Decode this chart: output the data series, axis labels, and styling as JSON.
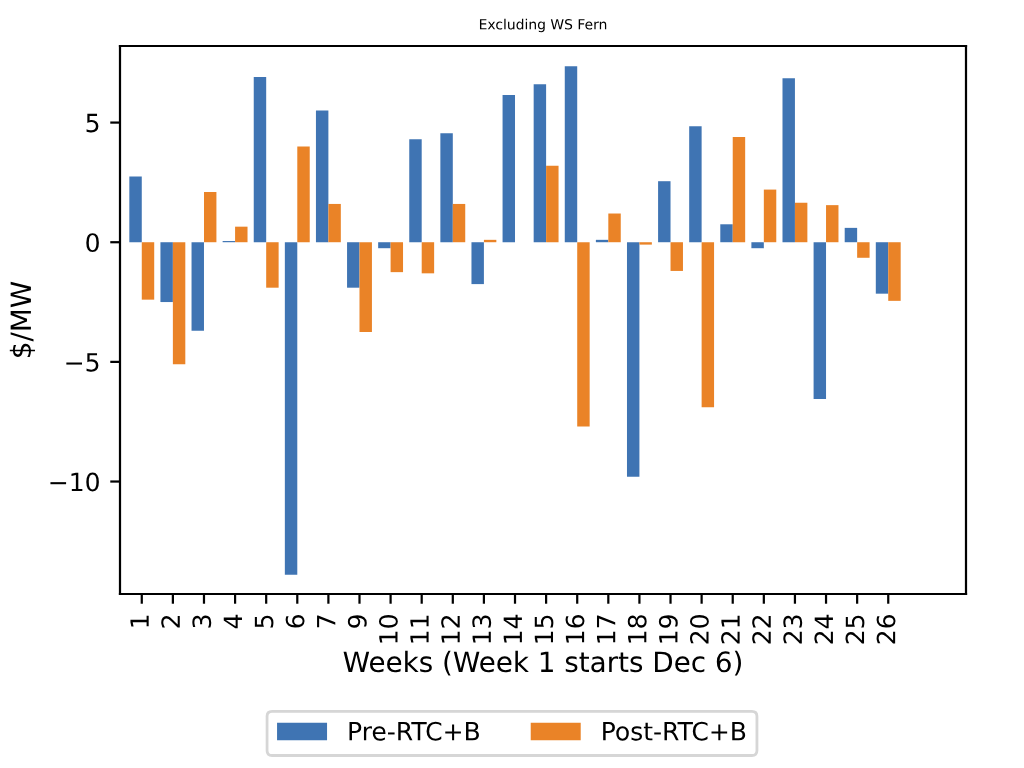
{
  "chart_data": {
    "type": "bar",
    "title": "Excluding WS Fern",
    "xlabel": "Weeks (Week 1 starts Dec 6)",
    "ylabel": "$/MW",
    "categories": [
      "1",
      "2",
      "3",
      "4",
      "5",
      "6",
      "7",
      "9",
      "10",
      "11",
      "12",
      "13",
      "14",
      "15",
      "16",
      "17",
      "18",
      "19",
      "20",
      "21",
      "22",
      "23",
      "24",
      "25",
      "26"
    ],
    "series": [
      {
        "name": "Pre-RTC+B",
        "color": "#3f74b3",
        "values": [
          2.75,
          -2.5,
          -3.7,
          0.05,
          6.9,
          -13.9,
          5.5,
          -1.9,
          -0.25,
          4.3,
          4.55,
          -1.75,
          6.15,
          6.6,
          7.35,
          0.1,
          -9.8,
          2.55,
          4.85,
          0.75,
          -0.25,
          6.85,
          -6.55,
          0.6,
          -2.15
        ]
      },
      {
        "name": "Post-RTC+B",
        "color": "#ea8327",
        "values": [
          -2.4,
          -5.1,
          2.1,
          0.65,
          -1.9,
          4.0,
          1.6,
          -3.75,
          -1.25,
          -1.3,
          1.6,
          0.1,
          null,
          3.2,
          -7.7,
          1.2,
          -0.1,
          -1.2,
          -6.9,
          4.4,
          2.2,
          1.65,
          1.55,
          -0.65,
          -2.45
        ]
      }
    ],
    "ylim": [
      -14.7,
      8.2
    ],
    "yticks": [
      -10,
      -5,
      0,
      5
    ],
    "grid": false,
    "legend": "bottom"
  }
}
